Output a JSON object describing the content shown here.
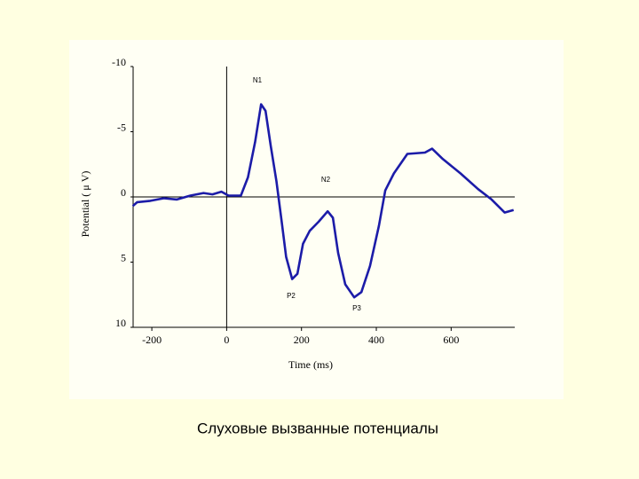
{
  "chart_data": {
    "type": "line",
    "title": "Слуховые вызванные потенциалы",
    "x_label": "Time (ms)",
    "y_label": "Potential ( μ V)",
    "annotations": [
      "N1",
      "N2",
      "P2",
      "P3"
    ],
    "x": [
      -251,
      -239,
      -204,
      -168,
      -133,
      -97,
      -62,
      -38,
      -14,
      5,
      38,
      57,
      76,
      92,
      104,
      118,
      133,
      147,
      159,
      175,
      189,
      204,
      222,
      246,
      270,
      284,
      298,
      317,
      341,
      360,
      383,
      407,
      424,
      447,
      483,
      530,
      549,
      578,
      625,
      672,
      708,
      743,
      767
    ],
    "series": [
      {
        "color": "#1c1ca8",
        "values": [
          0.7,
          0.4,
          0.3,
          0.1,
          0.2,
          -0.1,
          -0.3,
          -0.2,
          -0.4,
          -0.1,
          -0.1,
          -1.5,
          -4.2,
          -7.1,
          -6.6,
          -3.9,
          -1.2,
          1.9,
          4.6,
          6.3,
          5.9,
          3.6,
          2.6,
          1.9,
          1.1,
          1.6,
          4.3,
          6.7,
          7.7,
          7.3,
          5.3,
          2.2,
          -0.5,
          -1.8,
          -3.3,
          -3.4,
          -3.7,
          -2.9,
          -1.8,
          -0.6,
          0.2,
          1.2,
          1.0
        ]
      }
    ],
    "xlim": [
      -250,
      770
    ],
    "xticks": [
      -200,
      0,
      200,
      400,
      600
    ],
    "ylim": [
      -10,
      10
    ],
    "yticks": [
      -10,
      -5,
      0,
      5,
      10
    ],
    "y_inverted": true
  }
}
